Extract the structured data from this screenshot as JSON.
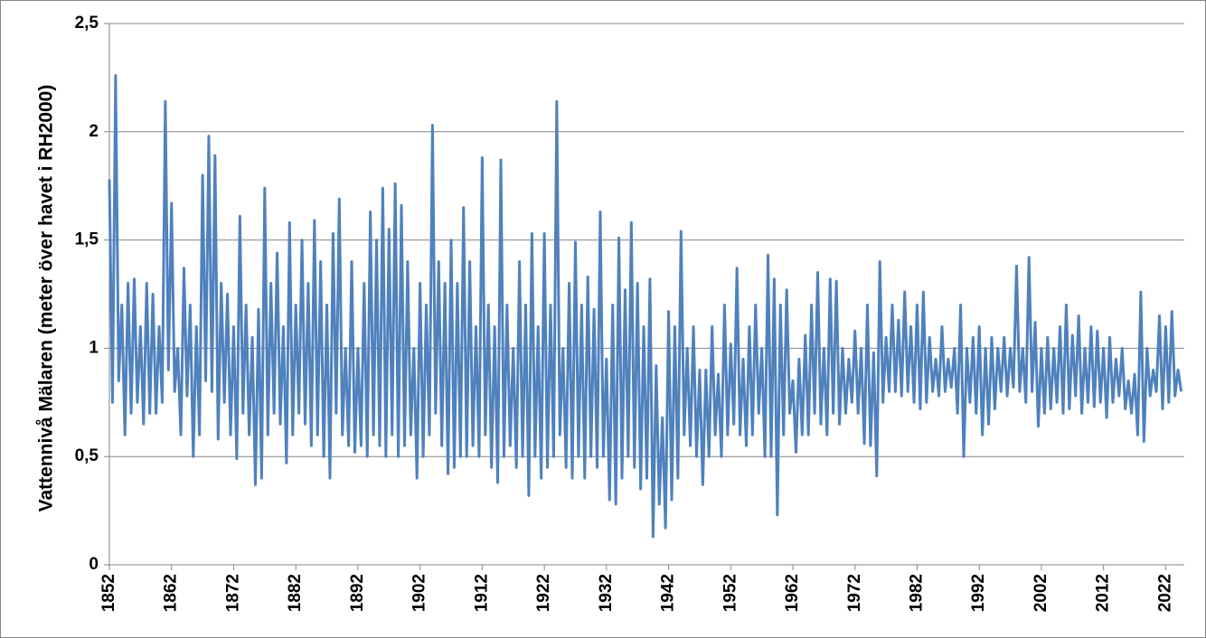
{
  "chart_data": {
    "type": "line",
    "y_label": "Vattennivå Mälaren (meter över havet i RH2000)",
    "xlim": [
      1852,
      2025
    ],
    "xticks": [
      1852,
      1862,
      1872,
      1882,
      1892,
      1902,
      1912,
      1922,
      1932,
      1942,
      1952,
      1962,
      1972,
      1982,
      1992,
      2002,
      2012,
      2022
    ],
    "ylim": [
      0,
      2.5
    ],
    "yticks": [
      0,
      {
        "value": 0.5,
        "label": "0,5"
      },
      1,
      {
        "value": 1.5,
        "label": "1,5"
      },
      2,
      {
        "value": 2.5,
        "label": "2,5"
      }
    ],
    "grid": true,
    "x": [
      1852,
      1852.5,
      1853,
      1853.5,
      1854,
      1854.5,
      1855,
      1855.5,
      1856,
      1856.5,
      1857,
      1857.5,
      1858,
      1858.5,
      1859,
      1859.5,
      1860,
      1860.5,
      1861,
      1861.5,
      1862,
      1862.5,
      1863,
      1863.5,
      1864,
      1864.5,
      1865,
      1865.5,
      1866,
      1866.5,
      1867,
      1867.5,
      1868,
      1868.5,
      1869,
      1869.5,
      1870,
      1870.5,
      1871,
      1871.5,
      1872,
      1872.5,
      1873,
      1873.5,
      1874,
      1874.5,
      1875,
      1875.5,
      1876,
      1876.5,
      1877,
      1877.5,
      1878,
      1878.5,
      1879,
      1879.5,
      1880,
      1880.5,
      1881,
      1881.5,
      1882,
      1882.5,
      1883,
      1883.5,
      1884,
      1884.5,
      1885,
      1885.5,
      1886,
      1886.5,
      1887,
      1887.5,
      1888,
      1888.5,
      1889,
      1889.5,
      1890,
      1890.5,
      1891,
      1891.5,
      1892,
      1892.5,
      1893,
      1893.5,
      1894,
      1894.5,
      1895,
      1895.5,
      1896,
      1896.5,
      1897,
      1897.5,
      1898,
      1898.5,
      1899,
      1899.5,
      1900,
      1900.5,
      1901,
      1901.5,
      1902,
      1902.5,
      1903,
      1903.5,
      1904,
      1904.5,
      1905,
      1905.5,
      1906,
      1906.5,
      1907,
      1907.5,
      1908,
      1908.5,
      1909,
      1909.5,
      1910,
      1910.5,
      1911,
      1911.5,
      1912,
      1912.5,
      1913,
      1913.5,
      1914,
      1914.5,
      1915,
      1915.5,
      1916,
      1916.5,
      1917,
      1917.5,
      1918,
      1918.5,
      1919,
      1919.5,
      1920,
      1920.5,
      1921,
      1921.5,
      1922,
      1922.5,
      1923,
      1923.5,
      1924,
      1924.5,
      1925,
      1925.5,
      1926,
      1926.5,
      1927,
      1927.5,
      1928,
      1928.5,
      1929,
      1929.5,
      1930,
      1930.5,
      1931,
      1931.5,
      1932,
      1932.5,
      1933,
      1933.5,
      1934,
      1934.5,
      1935,
      1935.5,
      1936,
      1936.5,
      1937,
      1937.5,
      1938,
      1938.5,
      1939,
      1939.5,
      1940,
      1940.5,
      1941,
      1941.5,
      1942,
      1942.5,
      1943,
      1943.5,
      1944,
      1944.5,
      1945,
      1945.5,
      1946,
      1946.5,
      1947,
      1947.5,
      1948,
      1948.5,
      1949,
      1949.5,
      1950,
      1950.5,
      1951,
      1951.5,
      1952,
      1952.5,
      1953,
      1953.5,
      1954,
      1954.5,
      1955,
      1955.5,
      1956,
      1956.5,
      1957,
      1957.5,
      1958,
      1958.5,
      1959,
      1959.5,
      1960,
      1960.5,
      1961,
      1961.5,
      1962,
      1962.5,
      1963,
      1963.5,
      1964,
      1964.5,
      1965,
      1965.5,
      1966,
      1966.5,
      1967,
      1967.5,
      1968,
      1968.5,
      1969,
      1969.5,
      1970,
      1970.5,
      1971,
      1971.5,
      1972,
      1972.5,
      1973,
      1973.5,
      1974,
      1974.5,
      1975,
      1975.5,
      1976,
      1976.5,
      1977,
      1977.5,
      1978,
      1978.5,
      1979,
      1979.5,
      1980,
      1980.5,
      1981,
      1981.5,
      1982,
      1982.5,
      1983,
      1983.5,
      1984,
      1984.5,
      1985,
      1985.5,
      1986,
      1986.5,
      1987,
      1987.5,
      1988,
      1988.5,
      1989,
      1989.5,
      1990,
      1990.5,
      1991,
      1991.5,
      1992,
      1992.5,
      1993,
      1993.5,
      1994,
      1994.5,
      1995,
      1995.5,
      1996,
      1996.5,
      1997,
      1997.5,
      1998,
      1998.5,
      1999,
      1999.5,
      2000,
      2000.5,
      2001,
      2001.5,
      2002,
      2002.5,
      2003,
      2003.5,
      2004,
      2004.5,
      2005,
      2005.5,
      2006,
      2006.5,
      2007,
      2007.5,
      2008,
      2008.5,
      2009,
      2009.5,
      2010,
      2010.5,
      2011,
      2011.5,
      2012,
      2012.5,
      2013,
      2013.5,
      2014,
      2014.5,
      2015,
      2015.5,
      2016,
      2016.5,
      2017,
      2017.5,
      2018,
      2018.5,
      2019,
      2019.5,
      2020,
      2020.5,
      2021,
      2021.5,
      2022,
      2022.5,
      2023,
      2023.5,
      2024,
      2024.5
    ],
    "series": [
      {
        "color": "#4f81bd",
        "values": [
          1.78,
          0.75,
          2.26,
          0.85,
          1.2,
          0.6,
          1.3,
          0.7,
          1.32,
          0.75,
          1.1,
          0.65,
          1.3,
          0.7,
          1.25,
          0.7,
          1.1,
          0.75,
          2.14,
          0.9,
          1.67,
          0.8,
          1.0,
          0.6,
          1.37,
          0.78,
          1.2,
          0.5,
          1.1,
          0.6,
          1.8,
          0.85,
          1.98,
          0.8,
          1.89,
          0.58,
          1.3,
          0.75,
          1.25,
          0.6,
          1.1,
          0.49,
          1.61,
          0.7,
          1.2,
          0.6,
          1.05,
          0.37,
          1.18,
          0.4,
          1.74,
          0.6,
          1.3,
          0.7,
          1.44,
          0.65,
          1.1,
          0.47,
          1.58,
          0.6,
          1.2,
          0.7,
          1.5,
          0.65,
          1.3,
          0.55,
          1.59,
          0.6,
          1.4,
          0.5,
          1.2,
          0.4,
          1.53,
          0.7,
          1.69,
          0.6,
          1.0,
          0.55,
          1.4,
          0.52,
          1.0,
          0.55,
          1.3,
          0.5,
          1.63,
          0.6,
          1.5,
          0.55,
          1.74,
          0.5,
          1.55,
          0.6,
          1.76,
          0.5,
          1.66,
          0.55,
          1.4,
          0.6,
          1.0,
          0.4,
          1.3,
          0.5,
          1.2,
          0.6,
          2.03,
          0.7,
          1.4,
          0.55,
          1.3,
          0.42,
          1.5,
          0.45,
          1.3,
          0.5,
          1.65,
          0.5,
          1.4,
          0.55,
          1.1,
          0.5,
          1.88,
          0.6,
          1.2,
          0.45,
          1.1,
          0.38,
          1.87,
          0.5,
          1.2,
          0.55,
          1.0,
          0.45,
          1.4,
          0.5,
          1.2,
          0.32,
          1.53,
          0.5,
          1.1,
          0.4,
          1.53,
          0.45,
          1.2,
          0.5,
          2.14,
          0.6,
          1.0,
          0.45,
          1.3,
          0.4,
          1.49,
          0.5,
          1.2,
          0.4,
          1.33,
          0.5,
          1.18,
          0.45,
          1.63,
          0.5,
          0.95,
          0.3,
          1.2,
          0.28,
          1.51,
          0.4,
          1.27,
          0.5,
          1.58,
          0.45,
          1.3,
          0.35,
          1.1,
          0.4,
          1.32,
          0.13,
          0.92,
          0.28,
          0.68,
          0.17,
          1.17,
          0.3,
          1.1,
          0.4,
          1.54,
          0.6,
          1.0,
          0.55,
          1.1,
          0.5,
          0.9,
          0.37,
          0.9,
          0.5,
          1.1,
          0.6,
          0.88,
          0.5,
          1.2,
          0.6,
          1.02,
          0.65,
          1.37,
          0.6,
          0.95,
          0.55,
          1.1,
          0.6,
          1.2,
          0.7,
          1.0,
          0.5,
          1.43,
          0.5,
          1.32,
          0.23,
          1.2,
          0.6,
          1.27,
          0.7,
          0.85,
          0.52,
          0.95,
          0.6,
          1.06,
          0.6,
          1.2,
          0.7,
          1.35,
          0.65,
          1.0,
          0.6,
          1.32,
          0.7,
          1.31,
          0.65,
          1.0,
          0.7,
          0.95,
          0.75,
          1.08,
          0.7,
          1.0,
          0.56,
          1.2,
          0.55,
          0.98,
          0.41,
          1.4,
          0.75,
          1.05,
          0.8,
          1.2,
          0.8,
          1.13,
          0.78,
          1.26,
          0.8,
          1.1,
          0.75,
          1.2,
          0.72,
          1.26,
          0.75,
          1.05,
          0.8,
          0.95,
          0.78,
          1.1,
          0.8,
          0.95,
          0.82,
          1.0,
          0.7,
          1.2,
          0.5,
          1.0,
          0.75,
          1.05,
          0.7,
          1.1,
          0.6,
          1.0,
          0.65,
          1.05,
          0.72,
          1.0,
          0.8,
          1.05,
          0.78,
          1.0,
          0.82,
          1.38,
          0.8,
          1.0,
          0.75,
          1.42,
          0.8,
          1.12,
          0.64,
          1.0,
          0.7,
          1.05,
          0.72,
          1.0,
          0.75,
          1.1,
          0.7,
          1.2,
          0.72,
          1.06,
          0.78,
          1.15,
          0.7,
          1.0,
          0.75,
          1.1,
          0.73,
          1.08,
          0.75,
          1.0,
          0.68,
          1.05,
          0.75,
          0.95,
          0.78,
          1.0,
          0.72,
          0.85,
          0.7,
          0.88,
          0.6,
          1.26,
          0.57,
          1.0,
          0.78,
          0.9,
          0.8,
          1.15,
          0.72,
          1.1,
          0.75,
          1.17,
          0.78,
          0.9,
          0.8
        ]
      }
    ]
  }
}
